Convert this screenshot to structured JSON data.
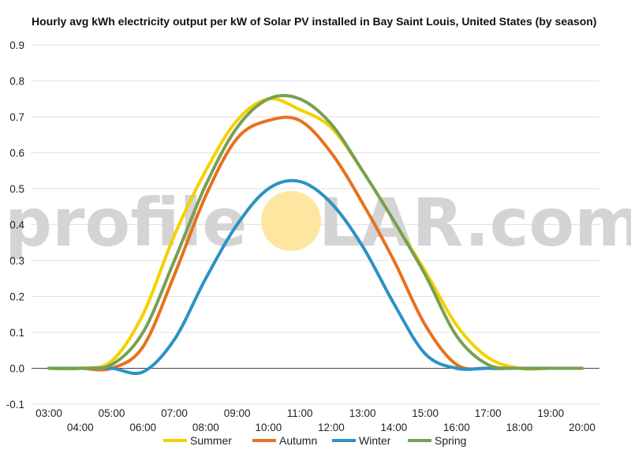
{
  "chart_data": {
    "type": "line",
    "title": "Hourly avg kWh electricity output per kW of Solar PV installed in Bay Saint Louis, United States (by season)",
    "xlabel": "",
    "ylabel": "",
    "x": [
      "03:00",
      "04:00",
      "05:00",
      "06:00",
      "07:00",
      "08:00",
      "09:00",
      "10:00",
      "11:00",
      "12:00",
      "13:00",
      "14:00",
      "15:00",
      "16:00",
      "17:00",
      "18:00",
      "19:00",
      "20:00"
    ],
    "ylim": [
      -0.1,
      0.9
    ],
    "yticks": [
      "-0.1",
      "0.0",
      "0.1",
      "0.2",
      "0.3",
      "0.4",
      "0.5",
      "0.6",
      "0.7",
      "0.8",
      "0.9"
    ],
    "grid": true,
    "legend_position": "bottom",
    "series": [
      {
        "name": "Summer",
        "color": "#f5d000",
        "values": [
          0.0,
          0.0,
          0.02,
          0.15,
          0.37,
          0.55,
          0.69,
          0.75,
          0.72,
          0.67,
          0.55,
          0.41,
          0.27,
          0.12,
          0.03,
          0.0,
          0.0,
          0.0
        ]
      },
      {
        "name": "Autumn",
        "color": "#e8711e",
        "values": [
          0.0,
          0.0,
          0.0,
          0.06,
          0.26,
          0.48,
          0.64,
          0.69,
          0.69,
          0.6,
          0.46,
          0.3,
          0.12,
          0.01,
          0.0,
          0.0,
          0.0,
          0.0
        ]
      },
      {
        "name": "Winter",
        "color": "#2a93c4",
        "values": [
          0.0,
          0.0,
          0.0,
          -0.01,
          0.08,
          0.25,
          0.4,
          0.5,
          0.52,
          0.46,
          0.34,
          0.18,
          0.04,
          0.0,
          0.0,
          0.0,
          0.0,
          0.0
        ]
      },
      {
        "name": "Spring",
        "color": "#76a052",
        "values": [
          0.0,
          0.0,
          0.01,
          0.1,
          0.3,
          0.51,
          0.67,
          0.75,
          0.75,
          0.68,
          0.55,
          0.41,
          0.26,
          0.09,
          0.01,
          0.0,
          0.0,
          0.0
        ]
      }
    ]
  },
  "watermark": {
    "left": "profile",
    "right": "LAR.com"
  },
  "colors": {
    "grid": "#e2e2e2",
    "zero_line": "#444444",
    "watermark_sun": "#fde7a0"
  }
}
